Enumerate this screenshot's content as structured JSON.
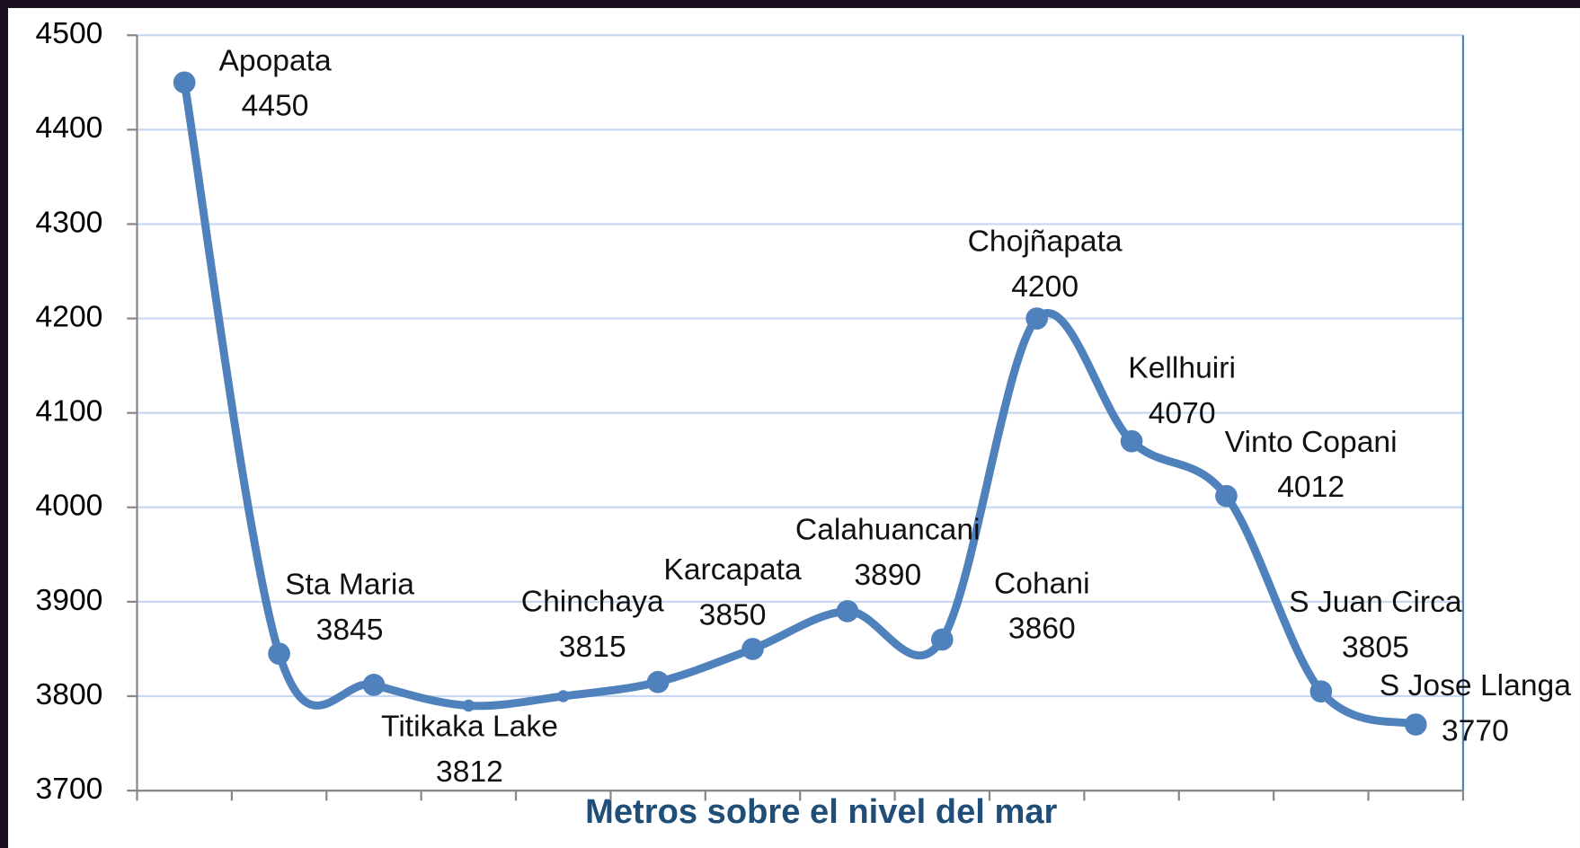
{
  "chart_data": {
    "type": "line",
    "x_label": "Metros sobre el nivel del mar",
    "categories": [
      "Apopata",
      "Sta Maria",
      "Titikaka Lake",
      null,
      null,
      "Chinchaya",
      "Karcapata",
      "Calahuancani",
      "Cohani",
      "Chojñapata",
      "Kellhuiri",
      "Vinto Copani",
      "S Juan Circa",
      "S Jose Llanga"
    ],
    "values": [
      4450,
      3845,
      3812,
      3790,
      3800,
      3815,
      3850,
      3890,
      3860,
      4200,
      4070,
      4012,
      3805,
      3770
    ],
    "color": "#4f81bd",
    "ylim": [
      3700,
      4500
    ],
    "yticks": [
      3700,
      3800,
      3900,
      4000,
      4100,
      4200,
      4300,
      4400,
      4500
    ],
    "grid": true
  }
}
